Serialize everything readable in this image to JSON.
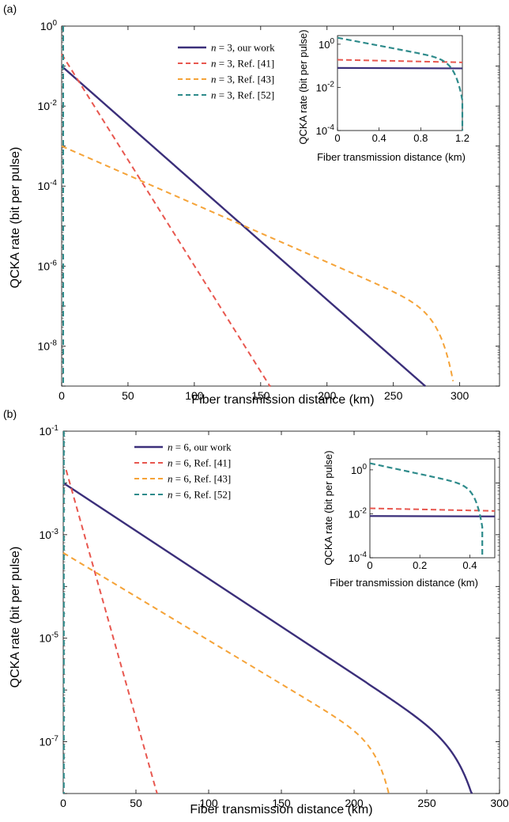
{
  "chart_data": [
    {
      "type": "line",
      "panel_label": "(a)",
      "xlabel": "Fiber transmission distance (km)",
      "ylabel": "QCKA rate (bit per pulse)",
      "xlim": [
        0,
        330
      ],
      "ylim_log10": [
        -9,
        0
      ],
      "y_scale": "log",
      "x_ticks": [
        0,
        50,
        100,
        150,
        200,
        250,
        300
      ],
      "y_ticks": [
        {
          "base": "10",
          "exp": "0",
          "value_log10": 0
        },
        {
          "base": "10",
          "exp": "-2",
          "value_log10": -2
        },
        {
          "base": "10",
          "exp": "-4",
          "value_log10": -4
        },
        {
          "base": "10",
          "exp": "-6",
          "value_log10": -6
        },
        {
          "base": "10",
          "exp": "-8",
          "value_log10": -8
        }
      ],
      "legend_position": "top-center",
      "series": [
        {
          "name": "n = 3, our work",
          "n": "n",
          "eq": " = 3, our work",
          "color": "#3b2f7a",
          "dash": "solid",
          "alpha_per_km": 0.0292,
          "cut_km": 322.5,
          "y0_log10": -1.0,
          "fall_tau": 3.0,
          "fall_depth": 2.0,
          "x_start": 0
        },
        {
          "name": "n = 3, Ref. [41]",
          "n": "n",
          "eq": " = 3, Ref. [41]",
          "color": "#e8574f",
          "dash": "dashed",
          "alpha_per_km": 0.0529,
          "cut_km": 400,
          "y0_log10": -0.7,
          "fall_tau": 1,
          "fall_depth": 0,
          "x_start": 0
        },
        {
          "name": "n = 3, Ref. [43]",
          "n": "n",
          "eq": " = 3, Ref. [43]",
          "color": "#f5a338",
          "dash": "dashed",
          "alpha_per_km": 0.0145,
          "cut_km": 295,
          "y0_log10": -3.0,
          "fall_tau": 10.0,
          "fall_depth": 1.6,
          "x_start": 0
        },
        {
          "name": "n = 3, Ref. [52]",
          "n": "n",
          "eq": " = 3, Ref. [52]",
          "color": "#2e8b8b",
          "dash": "dashed",
          "spike_km": 1.2,
          "x_start": 0
        }
      ],
      "inset": {
        "xlabel": "Fiber transmission distance (km)",
        "ylabel": "QCKA rate (bit per pulse)",
        "xlim": [
          0,
          1.2
        ],
        "ylim_log10": [
          -4,
          0.4
        ],
        "x_ticks": [
          {
            "v": 0,
            "label": "0"
          },
          {
            "v": 0.4,
            "label": "0.4"
          },
          {
            "v": 0.8,
            "label": "0.8"
          },
          {
            "v": 1.2,
            "label": "1.2"
          }
        ],
        "y_ticks": [
          {
            "base": "10",
            "exp": "0",
            "value_log10": 0
          },
          {
            "base": "10",
            "exp": "-2",
            "value_log10": -2
          },
          {
            "base": "10",
            "exp": "-4",
            "value_log10": -4
          }
        ],
        "ours_log10": -1.1,
        "ref41_log10": -0.72,
        "ref52_start_log10": 0.3,
        "ref52_cut": 1.2
      }
    },
    {
      "type": "line",
      "panel_label": "(b)",
      "xlabel": "Fiber transmission distance (km)",
      "ylabel": "QCKA rate (bit per pulse)",
      "xlim": [
        0,
        300
      ],
      "ylim_log10": [
        -8,
        -1
      ],
      "y_scale": "log",
      "x_ticks": [
        0,
        50,
        100,
        150,
        200,
        250,
        300
      ],
      "y_ticks": [
        {
          "base": "10",
          "exp": "-1",
          "value_log10": -1
        },
        {
          "base": "10",
          "exp": "-3",
          "value_log10": -3
        },
        {
          "base": "10",
          "exp": "-5",
          "value_log10": -5
        },
        {
          "base": "10",
          "exp": "-7",
          "value_log10": -7
        }
      ],
      "legend_position": "top-center",
      "series": [
        {
          "name": "n = 6, our work",
          "n": "n",
          "eq": " = 6, our work",
          "color": "#3b2f7a",
          "dash": "solid",
          "alpha_per_km": 0.0185,
          "cut_km": 289,
          "y0_log10": -2.0,
          "fall_tau": 12.0,
          "fall_depth": 1.6,
          "x_start": 0
        },
        {
          "name": "n = 6, Ref. [41]",
          "n": "n",
          "eq": " = 6, Ref. [41]",
          "color": "#e8574f",
          "dash": "dashed",
          "alpha_per_km": 0.1,
          "cut_km": 400,
          "y0_log10": -1.75,
          "fall_tau": 1,
          "fall_depth": 0,
          "x_start": 2
        },
        {
          "name": "n = 6, Ref. [43]",
          "n": "n",
          "eq": " = 6, Ref. [43]",
          "color": "#f5a338",
          "dash": "dashed",
          "alpha_per_km": 0.0169,
          "cut_km": 226,
          "y0_log10": -3.35,
          "fall_tau": 9.0,
          "fall_depth": 1.1,
          "x_start": 0
        },
        {
          "name": "n = 6, Ref. [52]",
          "n": "n",
          "eq": " = 6, Ref. [52]",
          "color": "#2e8b8b",
          "dash": "dashed",
          "spike_km": 0.45,
          "x_start": 0
        }
      ],
      "inset": {
        "xlabel": "Fiber transmission distance (km)",
        "ylabel": "QCKA rate (bit per pulse)",
        "xlim": [
          0,
          0.5
        ],
        "ylim_log10": [
          -4,
          0.5
        ],
        "x_ticks": [
          {
            "v": 0,
            "label": "0"
          },
          {
            "v": 0.2,
            "label": "0.2"
          },
          {
            "v": 0.4,
            "label": "0.4"
          }
        ],
        "y_ticks": [
          {
            "base": "10",
            "exp": "0",
            "value_log10": 0
          },
          {
            "base": "10",
            "exp": "-2",
            "value_log10": -2
          },
          {
            "base": "10",
            "exp": "-4",
            "value_log10": -4
          }
        ],
        "ours_log10": -2.1,
        "ref41_log10": -1.75,
        "ref52_start_log10": 0.3,
        "ref52_cut": 0.45
      }
    }
  ]
}
